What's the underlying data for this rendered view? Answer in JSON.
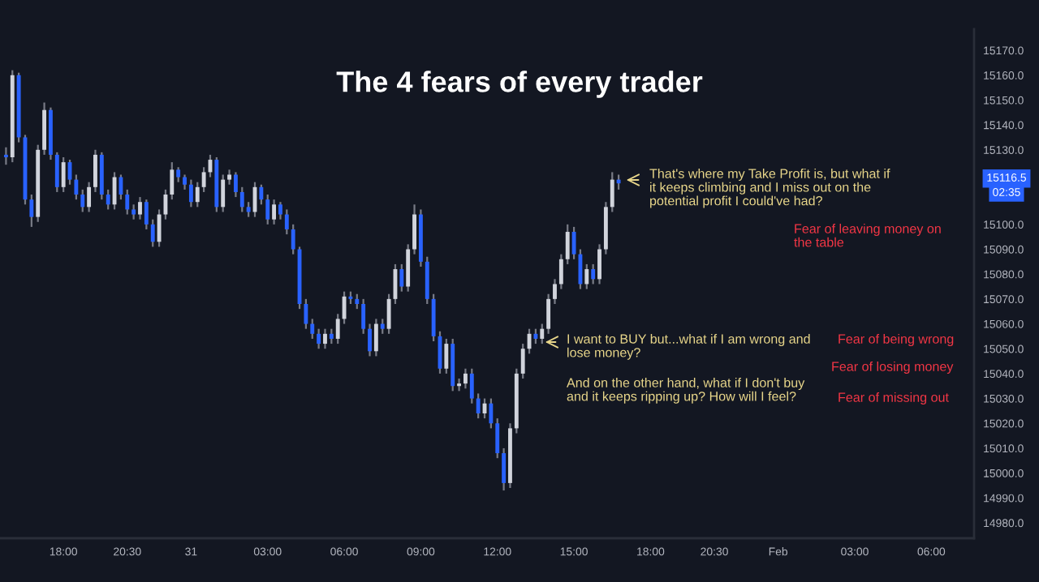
{
  "chart_data": {
    "type": "candlestick",
    "title": "The 4 fears of every trader",
    "categories": [
      null,
      null,
      null,
      null,
      null,
      null,
      null,
      null,
      null,
      "18:00",
      null,
      null,
      null,
      null,
      null,
      null,
      null,
      null,
      null,
      "20:30",
      null,
      null,
      null,
      null,
      null,
      null,
      null,
      null,
      null,
      "31",
      null,
      null,
      null,
      null,
      null,
      null,
      null,
      null,
      null,
      null,
      null,
      "03:00",
      null,
      null,
      null,
      null,
      null,
      null,
      null,
      null,
      null,
      null,
      null,
      "06:00",
      null,
      null,
      null,
      null,
      null,
      null,
      null,
      null,
      null,
      null,
      null,
      "09:00",
      null,
      null,
      null,
      null,
      null,
      null,
      null,
      null,
      null,
      null,
      null,
      "12:00",
      null,
      null,
      null,
      null,
      null,
      null,
      null,
      null,
      null,
      null,
      null,
      "15:00",
      null,
      null,
      null,
      null,
      null,
      null,
      null,
      null,
      null,
      null,
      null,
      "18:00",
      null,
      null,
      null,
      null,
      null,
      null,
      null,
      null,
      null,
      "20:30",
      null,
      null,
      null,
      null,
      null,
      null,
      null,
      null,
      null,
      "Feb",
      null,
      null,
      null,
      null,
      null,
      null,
      null,
      null,
      null,
      null,
      null,
      "03:00",
      null,
      null,
      null,
      null,
      null,
      null,
      null,
      null,
      null,
      null,
      null,
      "06:00",
      null,
      null,
      null,
      null,
      null,
      null
    ],
    "ohlc": [
      [
        15128,
        15131,
        15124,
        15127
      ],
      [
        15127,
        15162,
        15125,
        15160
      ],
      [
        15160,
        15161,
        15133,
        15135
      ],
      [
        15135,
        15136,
        15108,
        15110
      ],
      [
        15110,
        15112,
        15099,
        15103
      ],
      [
        15103,
        15132,
        15101,
        15130
      ],
      [
        15130,
        15149,
        15128,
        15146
      ],
      [
        15146,
        15147,
        15126,
        15128
      ],
      [
        15128,
        15129,
        15113,
        15115
      ],
      [
        15115,
        15127,
        15113,
        15125
      ],
      [
        15125,
        15126,
        15116,
        15118
      ],
      [
        15118,
        15120,
        15110,
        15112
      ],
      [
        15112,
        15114,
        15105,
        15107
      ],
      [
        15107,
        15117,
        15105,
        15115
      ],
      [
        15115,
        15130,
        15113,
        15128
      ],
      [
        15128,
        15129,
        15110,
        15112
      ],
      [
        15112,
        15114,
        15106,
        15108
      ],
      [
        15108,
        15121,
        15106,
        15119
      ],
      [
        15119,
        15120,
        15110,
        15112
      ],
      [
        15112,
        15114,
        15104,
        15106
      ],
      [
        15106,
        15108,
        15102,
        15104
      ],
      [
        15104,
        15111,
        15102,
        15109
      ],
      [
        15109,
        15110,
        15098,
        15100
      ],
      [
        15100,
        15102,
        15091,
        15093
      ],
      [
        15093,
        15106,
        15091,
        15104
      ],
      [
        15104,
        15114,
        15102,
        15112
      ],
      [
        15112,
        15125,
        15110,
        15122
      ],
      [
        15122,
        15123,
        15117,
        15119
      ],
      [
        15119,
        15120,
        15114,
        15116
      ],
      [
        15116,
        15118,
        15107,
        15109
      ],
      [
        15109,
        15117,
        15107,
        15115
      ],
      [
        15115,
        15123,
        15113,
        15121
      ],
      [
        15121,
        15128,
        15119,
        15126
      ],
      [
        15126,
        15127,
        15105,
        15107
      ],
      [
        15107,
        15120,
        15105,
        15118
      ],
      [
        15118,
        15122,
        15116,
        15120
      ],
      [
        15120,
        15121,
        15111,
        15113
      ],
      [
        15113,
        15115,
        15105,
        15107
      ],
      [
        15107,
        15109,
        15103,
        15105
      ],
      [
        15105,
        15117,
        15103,
        15115
      ],
      [
        15115,
        15116,
        15108,
        15110
      ],
      [
        15110,
        15112,
        15100,
        15102
      ],
      [
        15102,
        15110,
        15100,
        15108
      ],
      [
        15108,
        15109,
        15102,
        15104
      ],
      [
        15104,
        15106,
        15096,
        15098
      ],
      [
        15098,
        15100,
        15088,
        15090
      ],
      [
        15090,
        15091,
        15066,
        15068
      ],
      [
        15068,
        15070,
        15058,
        15060
      ],
      [
        15060,
        15062,
        15054,
        15056
      ],
      [
        15056,
        15058,
        15050,
        15052
      ],
      [
        15052,
        15058,
        15050,
        15056
      ],
      [
        15056,
        15058,
        15052,
        15054
      ],
      [
        15054,
        15064,
        15052,
        15062
      ],
      [
        15062,
        15073,
        15060,
        15071
      ],
      [
        15071,
        15073,
        15068,
        15070
      ],
      [
        15070,
        15072,
        15066,
        15068
      ],
      [
        15068,
        15070,
        15056,
        15058
      ],
      [
        15058,
        15060,
        15047,
        15049
      ],
      [
        15049,
        15062,
        15047,
        15060
      ],
      [
        15060,
        15062,
        15056,
        15058
      ],
      [
        15058,
        15072,
        15056,
        15070
      ],
      [
        15070,
        15084,
        15068,
        15082
      ],
      [
        15082,
        15084,
        15073,
        15075
      ],
      [
        15075,
        15092,
        15073,
        15090
      ],
      [
        15090,
        15108,
        15088,
        15104
      ],
      [
        15104,
        15106,
        15083,
        15085
      ],
      [
        15085,
        15087,
        15068,
        15070
      ],
      [
        15070,
        15072,
        15053,
        15055
      ],
      [
        15055,
        15057,
        15040,
        15042
      ],
      [
        15042,
        15054,
        15040,
        15052
      ],
      [
        15052,
        15054,
        15033,
        15035
      ],
      [
        15035,
        15038,
        15033,
        15036
      ],
      [
        15036,
        15042,
        15034,
        15040
      ],
      [
        15040,
        15042,
        15028,
        15030
      ],
      [
        15030,
        15032,
        15022,
        15024
      ],
      [
        15024,
        15030,
        15022,
        15028
      ],
      [
        15028,
        15030,
        15018,
        15020
      ],
      [
        15020,
        15022,
        15006,
        15008
      ],
      [
        15008,
        15010,
        14993,
        14996
      ],
      [
        14996,
        15020,
        14994,
        15018
      ],
      [
        15018,
        15042,
        15016,
        15040
      ],
      [
        15040,
        15052,
        15038,
        15050
      ],
      [
        15050,
        15058,
        15048,
        15056
      ],
      [
        15056,
        15058,
        15052,
        15054
      ],
      [
        15054,
        15060,
        15052,
        15058
      ],
      [
        15058,
        15072,
        15056,
        15070
      ],
      [
        15070,
        15078,
        15068,
        15076
      ],
      [
        15076,
        15088,
        15074,
        15086
      ],
      [
        15086,
        15100,
        15084,
        15097
      ],
      [
        15097,
        15099,
        15086,
        15088
      ],
      [
        15088,
        15090,
        15074,
        15076
      ],
      [
        15076,
        15084,
        15074,
        15082
      ],
      [
        15082,
        15084,
        15076,
        15078
      ],
      [
        15078,
        15092,
        15076,
        15090
      ],
      [
        15090,
        15109,
        15088,
        15107
      ],
      [
        15107,
        15121,
        15105,
        15118
      ],
      [
        15118,
        15120,
        15114,
        15116.5
      ],
      null,
      null,
      null,
      null,
      null,
      null,
      null,
      null,
      null,
      null,
      null,
      null,
      null,
      null,
      null,
      null,
      null,
      null,
      null,
      null,
      null,
      null,
      null,
      null,
      null,
      null,
      null,
      null,
      null,
      null,
      null,
      null,
      null,
      null,
      null,
      null,
      null,
      null,
      null,
      null,
      null,
      null,
      null,
      null,
      null,
      null,
      null,
      null,
      null,
      null,
      null,
      null,
      null,
      null,
      null
    ],
    "ylim": [
      14973.8,
      15178.5
    ],
    "yticks": [
      {
        "value": 14980,
        "label": "14980.0"
      },
      {
        "value": 14990,
        "label": "14990.0"
      },
      {
        "value": 15000,
        "label": "15000.0"
      },
      {
        "value": 15010,
        "label": "15010.0"
      },
      {
        "value": 15020,
        "label": "15020.0"
      },
      {
        "value": 15030,
        "label": "15030.0"
      },
      {
        "value": 15040,
        "label": "15040.0"
      },
      {
        "value": 15050,
        "label": "15050.0"
      },
      {
        "value": 15060,
        "label": "15060.0"
      },
      {
        "value": 15070,
        "label": "15070.0"
      },
      {
        "value": 15080,
        "label": "15080.0"
      },
      {
        "value": 15090,
        "label": "15090.0"
      },
      {
        "value": 15100,
        "label": "15100.0"
      },
      {
        "value": 15130,
        "label": "15130.0"
      },
      {
        "value": 15140,
        "label": "15140.0"
      },
      {
        "value": 15150,
        "label": "15150.0"
      },
      {
        "value": 15160,
        "label": "15160.0"
      },
      {
        "value": 15170,
        "label": "15170.0"
      }
    ],
    "annotations": [
      "That's where my Take Profit is, but what if\nit keeps climbing and I miss out on the\npotential profit I could've had?",
      "Fear of leaving money on\nthe table",
      "I want to BUY but...what if I am wrong and\nlose money?",
      "And on the other hand, what if I don't buy\nand it keeps ripping up? How will I feel?",
      "Fear of being wrong",
      "Fear of losing money",
      "Fear of missing out",
      "15116.5",
      "02:35"
    ]
  }
}
